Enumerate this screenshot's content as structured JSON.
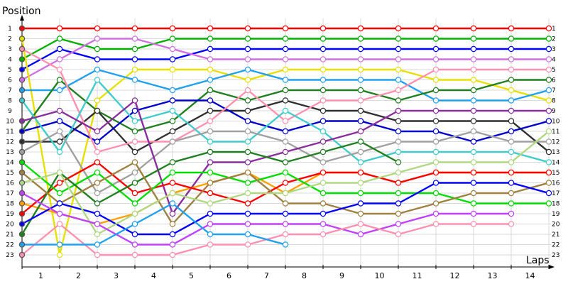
{
  "chart_data": {
    "type": "line",
    "ylabel": "Position",
    "xlabel": "Laps",
    "x_ticks": [
      "1",
      "2",
      "3",
      "4",
      "5",
      "6",
      "7",
      "8",
      "9",
      "10",
      "11",
      "12",
      "13",
      "14"
    ],
    "y_ticks": [
      "1",
      "2",
      "3",
      "4",
      "5",
      "6",
      "7",
      "8",
      "9",
      "10",
      "11",
      "12",
      "13",
      "14",
      "15",
      "16",
      "17",
      "18",
      "19",
      "20",
      "21",
      "22",
      "23"
    ],
    "x_range": [
      0,
      14
    ],
    "y_range": [
      1,
      23
    ],
    "y_inverted": true,
    "grid": true,
    "series": [
      {
        "color": "#ff0000",
        "values": [
          1,
          1,
          1,
          1,
          1,
          1,
          1,
          1,
          1,
          1,
          1,
          1,
          1,
          1,
          1
        ]
      },
      {
        "color": "#00b000",
        "values": [
          4,
          2,
          3,
          3,
          2,
          2,
          2,
          2,
          2,
          2,
          2,
          2,
          2,
          2,
          2
        ]
      },
      {
        "color": "#0000ff",
        "values": [
          5,
          3,
          4,
          4,
          4,
          3,
          3,
          3,
          3,
          3,
          3,
          3,
          3,
          3,
          3
        ]
      },
      {
        "color": "#d070e0",
        "values": [
          6,
          4,
          2,
          2,
          3,
          4,
          4,
          4,
          4,
          4,
          4,
          4,
          4,
          4,
          4
        ]
      },
      {
        "color": "#e8e000",
        "values": [
          2,
          23,
          8,
          5,
          5,
          5,
          6,
          5,
          5,
          5,
          5,
          6,
          6,
          7,
          8
        ]
      },
      {
        "color": "#20a0f0",
        "values": [
          7,
          7,
          5,
          6,
          7,
          6,
          5,
          6,
          6,
          6,
          6,
          8,
          8,
          8,
          7
        ]
      },
      {
        "color": "#208020",
        "values": [
          11,
          6,
          9,
          11,
          10,
          7,
          8,
          7,
          7,
          7,
          8,
          7,
          7,
          6,
          6
        ]
      },
      {
        "color": "#303030",
        "values": [
          12,
          12,
          9,
          13,
          11,
          9,
          9,
          8,
          9,
          9,
          10,
          10,
          10,
          10,
          13
        ]
      },
      {
        "color": "#0000cc",
        "values": [
          11,
          10,
          12,
          9,
          8,
          8,
          10,
          11,
          10,
          10,
          11,
          11,
          12,
          11,
          10
        ]
      },
      {
        "color": "#ff90b0",
        "values": [
          3,
          5,
          13,
          12,
          12,
          10,
          7,
          10,
          8,
          8,
          7,
          5,
          5,
          5,
          5
        ]
      },
      {
        "color": "#40cccc",
        "values": [
          8,
          13,
          6,
          10,
          9,
          12,
          12,
          9,
          11,
          14,
          13,
          13,
          13,
          13,
          14
        ]
      },
      {
        "color": "#a0a0a0",
        "values": [
          13,
          11,
          17,
          15,
          12,
          11,
          11,
          12,
          14,
          13,
          12,
          12,
          11,
          12,
          12
        ]
      },
      {
        "color": "#8a2e9e",
        "values": [
          10,
          9,
          11,
          8,
          19,
          14,
          14,
          13,
          12,
          11,
          9,
          9,
          9,
          9,
          9
        ]
      },
      {
        "color": "#ffa000",
        "values": [
          18,
          19,
          20,
          19,
          17,
          16,
          15,
          17,
          15,
          15,
          16,
          15,
          15,
          15,
          15
        ]
      },
      {
        "color": "#ff0000",
        "values": [
          19,
          16,
          14,
          17,
          16,
          17,
          18,
          16,
          15,
          15,
          16,
          15,
          15,
          15,
          15
        ]
      },
      {
        "color": "#00dd00",
        "values": [
          14,
          17,
          15,
          18,
          15,
          15,
          16,
          15,
          17,
          17,
          17,
          17,
          18,
          18,
          18
        ]
      },
      {
        "color": "#208020",
        "values": [
          21,
          15,
          18,
          16,
          14,
          13,
          13,
          14,
          13,
          12,
          14,
          null,
          null,
          null,
          null
        ]
      },
      {
        "color": "#a08040",
        "values": [
          15,
          18,
          16,
          14,
          20,
          16,
          15,
          18,
          18,
          19,
          19,
          18,
          17,
          17,
          16
        ]
      },
      {
        "color": "#0000ff",
        "values": [
          20,
          18,
          19,
          21,
          21,
          19,
          19,
          19,
          19,
          18,
          18,
          16,
          16,
          16,
          17
        ]
      },
      {
        "color": "#b0d880",
        "values": [
          16,
          15,
          21,
          19,
          17,
          18,
          17,
          17,
          16,
          16,
          15,
          14,
          14,
          14,
          11
        ]
      },
      {
        "color": "#c040ff",
        "values": [
          17,
          19,
          20,
          22,
          22,
          20,
          20,
          20,
          20,
          21,
          20,
          19,
          19,
          19,
          null
        ]
      },
      {
        "color": "#ff90b0",
        "values": [
          23,
          20,
          23,
          23,
          23,
          22,
          22,
          21,
          21,
          20,
          21,
          20,
          20,
          20,
          null
        ]
      },
      {
        "color": "#20a0f0",
        "values": [
          22,
          22,
          22,
          20,
          18,
          21,
          21,
          22,
          null,
          null,
          null,
          null,
          null,
          null,
          null
        ]
      }
    ],
    "right_labels": [
      "1",
      "2",
      "3",
      "4",
      "5",
      "6",
      "7",
      "8",
      "9",
      "10",
      "11",
      "12",
      "13",
      "14",
      "15",
      "16",
      "17",
      "18",
      "19",
      "20",
      "21",
      "22",
      "23"
    ]
  }
}
